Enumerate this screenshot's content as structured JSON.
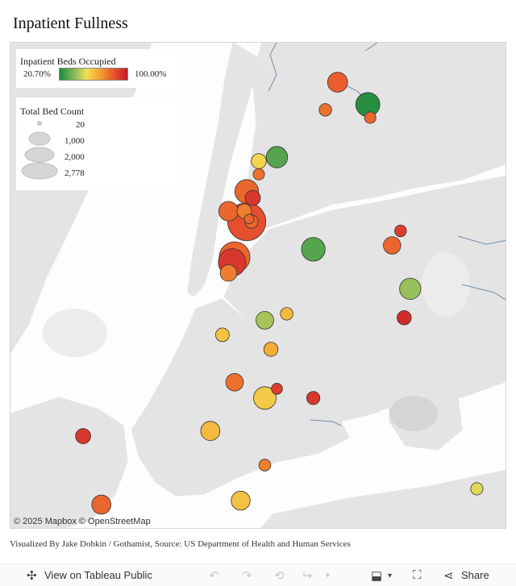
{
  "title": "Inpatient Fullness",
  "legend_color": {
    "title": "Inpatient Beds Occupied",
    "min_label": "20.70%",
    "max_label": "100.00%",
    "gradient": [
      "#1e8a3c",
      "#7cb85a",
      "#f3df56",
      "#f4a02e",
      "#e8522d",
      "#c51b2a"
    ]
  },
  "legend_size": {
    "title": "Total Bed Count",
    "items": [
      "20",
      "1,000",
      "2,000",
      "2,778"
    ]
  },
  "attribution": "© 2025 Mapbox © OpenStreetMap",
  "footer": "Visualized By Jake Dobkin / Gothamist, Source: US Department of Health and Human Services",
  "toolbar": {
    "view_label": "View on Tableau Public",
    "share_label": "Share"
  },
  "colors": {
    "land": "#e4e4e4",
    "water": "#fdfdfd",
    "border": "#6f8fb0"
  },
  "hospitals": [
    {
      "lng": -73.87,
      "lat": 40.895,
      "occupancy": 82,
      "beds": 580
    },
    {
      "lng": -73.88,
      "lat": 40.874,
      "occupancy": 78,
      "beds": 150
    },
    {
      "lng": -73.845,
      "lat": 40.878,
      "occupancy": 22,
      "beds": 930
    },
    {
      "lng": -73.843,
      "lat": 40.868,
      "occupancy": 80,
      "beds": 110
    },
    {
      "lng": -73.92,
      "lat": 40.838,
      "occupancy": 30,
      "beds": 700
    },
    {
      "lng": -73.935,
      "lat": 40.835,
      "occupancy": 55,
      "beds": 260
    },
    {
      "lng": -73.935,
      "lat": 40.825,
      "occupancy": 78,
      "beds": 110
    },
    {
      "lng": -73.945,
      "lat": 40.812,
      "occupancy": 80,
      "beds": 900
    },
    {
      "lng": -73.94,
      "lat": 40.807,
      "occupancy": 92,
      "beds": 280
    },
    {
      "lng": -73.96,
      "lat": 40.797,
      "occupancy": 80,
      "beds": 550
    },
    {
      "lng": -73.947,
      "lat": 40.797,
      "occupancy": 75,
      "beds": 240
    },
    {
      "lng": -73.945,
      "lat": 40.789,
      "occupancy": 85,
      "beds": 2778
    },
    {
      "lng": -73.941,
      "lat": 40.789,
      "occupancy": 80,
      "beds": 180
    },
    {
      "lng": -73.943,
      "lat": 40.791,
      "occupancy": 80,
      "beds": 60
    },
    {
      "lng": -73.955,
      "lat": 40.762,
      "occupancy": 80,
      "beds": 1700
    },
    {
      "lng": -73.957,
      "lat": 40.758,
      "occupancy": 92,
      "beds": 1300
    },
    {
      "lng": -73.96,
      "lat": 40.75,
      "occupancy": 75,
      "beds": 350
    },
    {
      "lng": -73.89,
      "lat": 40.768,
      "occupancy": 30,
      "beds": 900
    },
    {
      "lng": -73.825,
      "lat": 40.771,
      "occupancy": 80,
      "beds": 400
    },
    {
      "lng": -73.818,
      "lat": 40.782,
      "occupancy": 90,
      "beds": 120
    },
    {
      "lng": -73.81,
      "lat": 40.738,
      "occupancy": 40,
      "beds": 680
    },
    {
      "lng": -73.815,
      "lat": 40.716,
      "occupancy": 95,
      "beds": 220
    },
    {
      "lng": -73.93,
      "lat": 40.714,
      "occupancy": 42,
      "beds": 420
    },
    {
      "lng": -73.912,
      "lat": 40.719,
      "occupancy": 62,
      "beds": 150
    },
    {
      "lng": -73.965,
      "lat": 40.703,
      "occupancy": 60,
      "beds": 200
    },
    {
      "lng": -73.925,
      "lat": 40.692,
      "occupancy": 65,
      "beds": 220
    },
    {
      "lng": -73.955,
      "lat": 40.667,
      "occupancy": 78,
      "beds": 410
    },
    {
      "lng": -73.93,
      "lat": 40.655,
      "occupancy": 58,
      "beds": 800
    },
    {
      "lng": -73.92,
      "lat": 40.662,
      "occupancy": 90,
      "beds": 100
    },
    {
      "lng": -73.89,
      "lat": 40.655,
      "occupancy": 92,
      "beds": 180
    },
    {
      "lng": -73.975,
      "lat": 40.63,
      "occupancy": 62,
      "beds": 520
    },
    {
      "lng": -73.93,
      "lat": 40.604,
      "occupancy": 75,
      "beds": 120
    },
    {
      "lng": -73.95,
      "lat": 40.577,
      "occupancy": 60,
      "beds": 510
    },
    {
      "lng": -74.08,
      "lat": 40.626,
      "occupancy": 92,
      "beds": 270
    },
    {
      "lng": -74.065,
      "lat": 40.574,
      "occupancy": 80,
      "beds": 520
    },
    {
      "lng": -73.755,
      "lat": 40.586,
      "occupancy": 50,
      "beds": 140
    }
  ]
}
